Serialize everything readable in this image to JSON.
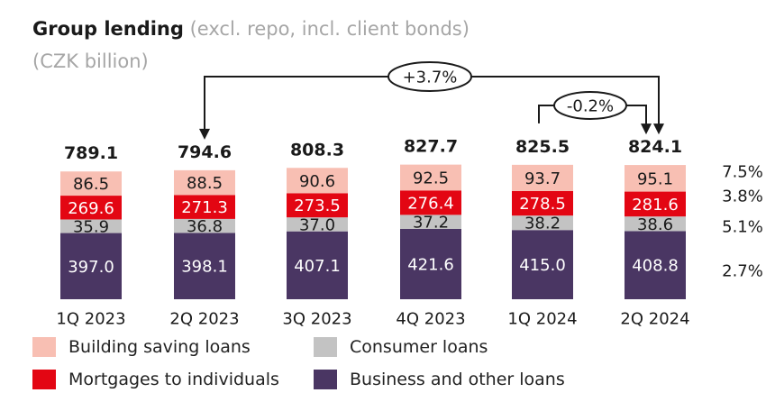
{
  "title": {
    "main": "Group lending",
    "sub": "(excl. repo, incl. client bonds)",
    "unit": "(CZK billion)"
  },
  "chart_data": {
    "type": "bar",
    "stacked": true,
    "categories": [
      "1Q 2023",
      "2Q 2023",
      "3Q 2023",
      "4Q 2023",
      "1Q 2024",
      "2Q 2024"
    ],
    "totals": [
      "789.1",
      "794.6",
      "808.3",
      "827.7",
      "825.5",
      "824.1"
    ],
    "series": [
      {
        "name": "Business and other loans",
        "color": "#4a3663",
        "label_color": "#ffffff",
        "values": [
          397.0,
          398.1,
          407.1,
          421.6,
          415.0,
          408.8
        ],
        "labels": [
          "397.0",
          "398.1",
          "407.1",
          "421.6",
          "415.0",
          "408.8"
        ]
      },
      {
        "name": "Consumer loans",
        "color": "#c3c3c3",
        "label_color": "#1a1a1a",
        "values": [
          35.9,
          36.8,
          37.0,
          37.2,
          38.2,
          38.6
        ],
        "labels": [
          "35.9",
          "36.8",
          "37.0",
          "37.2",
          "38.2",
          "38.6"
        ]
      },
      {
        "name": "Mortgages to individuals",
        "color": "#e30613",
        "label_color": "#ffffff",
        "values": [
          269.6,
          271.3,
          273.5,
          276.4,
          278.5,
          281.6
        ],
        "labels": [
          "269.6",
          "271.3",
          "273.5",
          "276.4",
          "278.5",
          "281.6"
        ]
      },
      {
        "name": "Building saving loans",
        "color": "#f8bfb3",
        "label_color": "#1a1a1a",
        "values": [
          86.5,
          88.5,
          90.6,
          92.5,
          93.7,
          95.1
        ],
        "labels": [
          "86.5",
          "88.5",
          "90.6",
          "92.5",
          "93.7",
          "95.1"
        ]
      }
    ],
    "growth_labels": [
      "7.5%",
      "3.8%",
      "5.1%",
      "2.7%"
    ],
    "annotations": [
      {
        "text": "+3.7%",
        "from": "2Q 2023",
        "to": "2Q 2024"
      },
      {
        "text": "-0.2%",
        "from": "1Q 2024",
        "to": "2Q 2024"
      }
    ],
    "legend": [
      {
        "label": "Building saving loans",
        "color": "#f8bfb3"
      },
      {
        "label": "Consumer loans",
        "color": "#c3c3c3"
      },
      {
        "label": "Mortgages to individuals",
        "color": "#e30613"
      },
      {
        "label": "Business and other loans",
        "color": "#4a3663"
      }
    ],
    "grid": false,
    "legend_position": "bottom"
  }
}
